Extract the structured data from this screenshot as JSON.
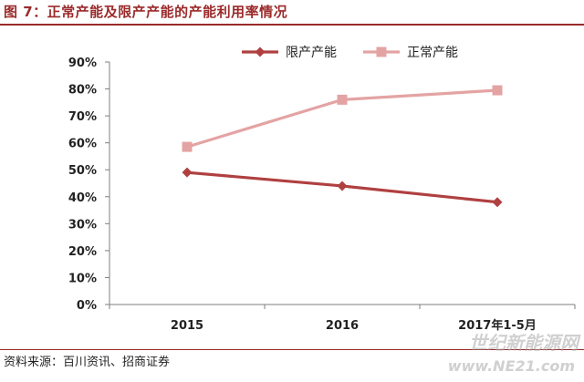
{
  "figure": {
    "title": "图 7：正常产能及限产产能的产能利用率情况",
    "source": "资料来源：百川资讯、招商证券",
    "watermark": "世纪新能源网",
    "watermark_url": "www.NE21.com"
  },
  "chart_data": {
    "type": "line",
    "categories": [
      "2015",
      "2016",
      "2017年1-5月"
    ],
    "series": [
      {
        "name": "限产产能",
        "values": [
          49,
          44,
          38
        ],
        "color": "#b04040",
        "marker": "diamond"
      },
      {
        "name": "正常产能",
        "values": [
          58.5,
          76,
          79.5
        ],
        "color": "#e4a3a3",
        "marker": "square"
      }
    ],
    "y_ticks": [
      "0%",
      "10%",
      "20%",
      "30%",
      "40%",
      "50%",
      "60%",
      "70%",
      "80%",
      "90%"
    ],
    "ylim": [
      0,
      90
    ],
    "grid": false,
    "legend_position": "top-right",
    "title": "",
    "xlabel": "",
    "ylabel": ""
  }
}
